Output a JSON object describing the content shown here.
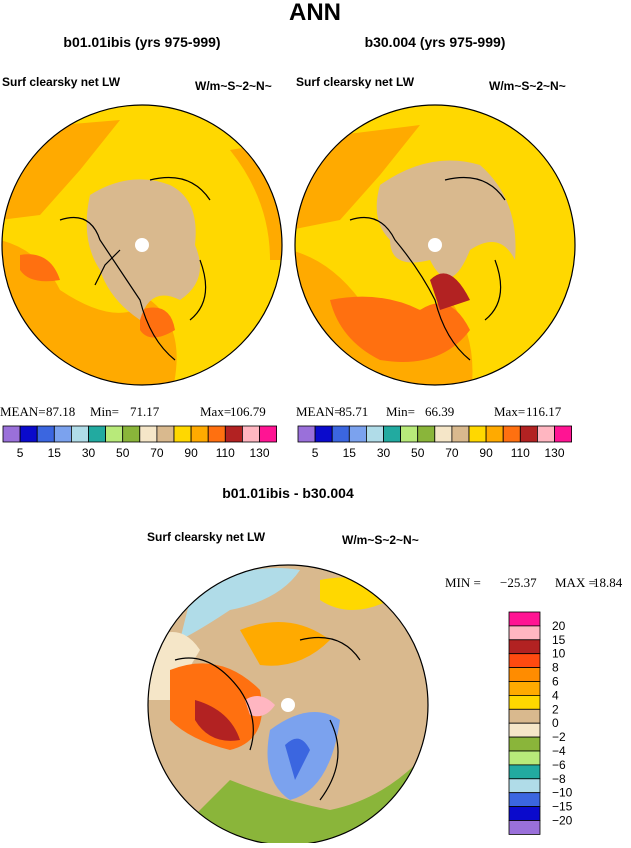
{
  "title": "ANN",
  "panels": [
    {
      "title": "b01.01ibis (yrs 975-999)",
      "subtitle": "Surf clearsky net LW",
      "units": "W/m~S~2~N~",
      "stats": [
        {
          "label": "MEAN=",
          "value": "87.18"
        },
        {
          "label": "Min=",
          "value": "71.17"
        },
        {
          "label": "Max=",
          "value": "106.79"
        }
      ]
    },
    {
      "title": "b30.004 (yrs 975-999)",
      "subtitle": "Surf clearsky net LW",
      "units": "W/m~S~2~N~",
      "stats": [
        {
          "label": "MEAN=",
          "value": "85.71"
        },
        {
          "label": "Min=",
          "value": "66.39"
        },
        {
          "label": "Max=",
          "value": "116.17"
        }
      ]
    },
    {
      "title": "b01.01ibis - b30.004",
      "subtitle": "Surf clearsky net LW",
      "units": "W/m~S~2~N~",
      "stats": [
        {
          "label": "MIN =",
          "value": "−25.37"
        },
        {
          "label": "MAX =",
          "value": "18.84"
        }
      ]
    }
  ],
  "colorbar": {
    "labels": [
      "5",
      "15",
      "30",
      "50",
      "70",
      "90",
      "110",
      "130"
    ],
    "colors": [
      "#9a70da",
      "#0a0acc",
      "#3b66e0",
      "#7ba2ee",
      "#b0dce8",
      "#22aaa0",
      "#b8ea7a",
      "#8ab53a",
      "#f5e6c8",
      "#d9b98e",
      "#ffd800",
      "#ffaa00",
      "#ff7010",
      "#b22222",
      "#ffb6c1",
      "#ff1493"
    ]
  },
  "diff_colorbar": {
    "labels": [
      "20",
      "15",
      "10",
      "8",
      "6",
      "4",
      "2",
      "0",
      "−2",
      "−4",
      "−6",
      "−8",
      "−10",
      "−15",
      "−20"
    ],
    "colors": [
      "#ff1493",
      "#ffb6c1",
      "#b22222",
      "#ff4a10",
      "#ff8c00",
      "#ffaa00",
      "#ffd800",
      "#d9b98e",
      "#f5e6c8",
      "#8ab53a",
      "#b8ea7a",
      "#22aaa0",
      "#b0dce8",
      "#3b66e0",
      "#0a0acc",
      "#9a70da"
    ]
  }
}
